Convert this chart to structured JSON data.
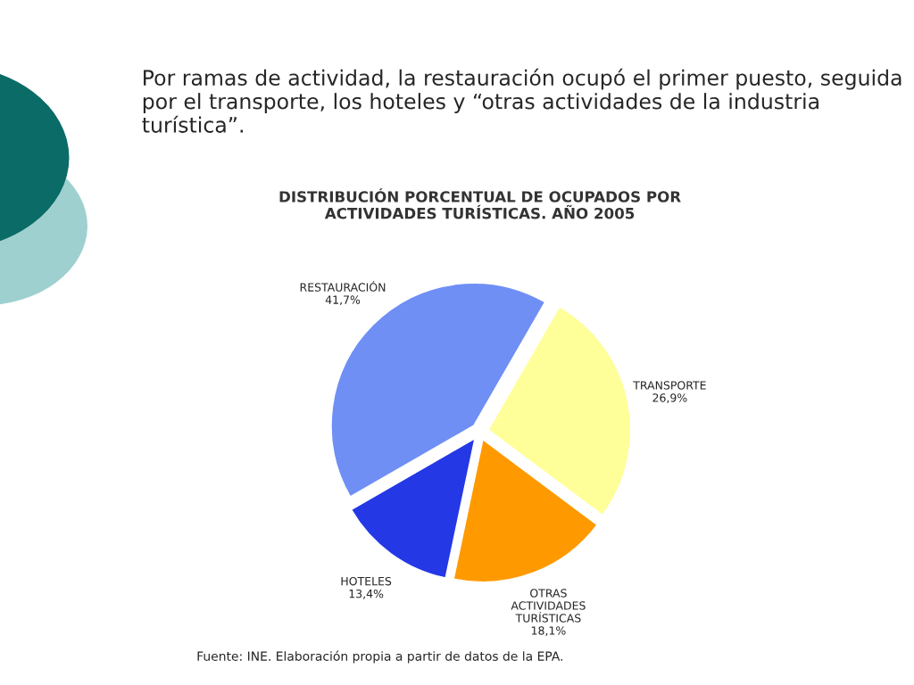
{
  "chart_data": {
    "type": "pie",
    "title": "DISTRIBUCIÓN PORCENTUAL DE OCUPADOS POR\nACTIVIDADES TURÍSTICAS. AÑO 2005",
    "categories": [
      "TRANSPORTE",
      "OTRAS\nACTIVIDADES\nTURÍSTICAS",
      "HOTELES",
      "RESTAURACIÓN"
    ],
    "values": [
      26.9,
      18.1,
      13.4,
      41.7
    ],
    "value_labels": [
      "26,9%",
      "18,1%",
      "13,4%",
      "41,7%"
    ],
    "colors": [
      "#ffff99",
      "#ff9900",
      "#2438e6",
      "#6f8ff5"
    ],
    "annotations": [
      "Por ramas de actividad, la restauración ocupó el primer puesto, seguida por el transporte, los hoteles y “otras actividades de la industria turística”.",
      "Fuente: INE. Elaboración propia a partir de datos de la EPA."
    ]
  }
}
